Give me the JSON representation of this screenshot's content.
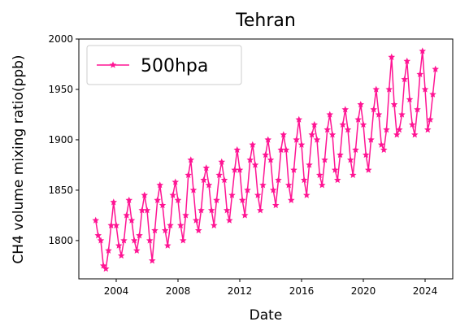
{
  "chart_data": {
    "type": "line",
    "title": "Tehran",
    "x_label": "Date",
    "y_label": "CH4 volume mixing ratio(ppb)",
    "xlim": [
      2001.58,
      2025.79
    ],
    "ylim": [
      1762,
      2000
    ],
    "xticks": [
      2004,
      2008,
      2012,
      2016,
      2020,
      2024
    ],
    "yticks": [
      1800,
      1850,
      1900,
      1950,
      2000
    ],
    "legend": "upper left",
    "grid": false,
    "x": [
      2002.67,
      2002.83,
      2003.0,
      2003.17,
      2003.33,
      2003.5,
      2003.67,
      2003.83,
      2004.0,
      2004.17,
      2004.33,
      2004.5,
      2004.67,
      2004.83,
      2005.0,
      2005.17,
      2005.33,
      2005.5,
      2005.67,
      2005.83,
      2006.0,
      2006.17,
      2006.33,
      2006.5,
      2006.67,
      2006.83,
      2007.0,
      2007.17,
      2007.33,
      2007.5,
      2007.67,
      2007.83,
      2008.0,
      2008.17,
      2008.33,
      2008.5,
      2008.67,
      2008.83,
      2009.0,
      2009.17,
      2009.33,
      2009.5,
      2009.67,
      2009.83,
      2010.0,
      2010.17,
      2010.33,
      2010.5,
      2010.67,
      2010.83,
      2011.0,
      2011.17,
      2011.33,
      2011.5,
      2011.67,
      2011.83,
      2012.0,
      2012.17,
      2012.33,
      2012.5,
      2012.67,
      2012.83,
      2013.0,
      2013.17,
      2013.33,
      2013.5,
      2013.67,
      2013.83,
      2014.0,
      2014.17,
      2014.33,
      2014.5,
      2014.67,
      2014.83,
      2015.0,
      2015.17,
      2015.33,
      2015.5,
      2015.67,
      2015.83,
      2016.0,
      2016.17,
      2016.33,
      2016.5,
      2016.67,
      2016.83,
      2017.0,
      2017.17,
      2017.33,
      2017.5,
      2017.67,
      2017.83,
      2018.0,
      2018.17,
      2018.33,
      2018.5,
      2018.67,
      2018.83,
      2019.0,
      2019.17,
      2019.33,
      2019.5,
      2019.67,
      2019.83,
      2020.0,
      2020.17,
      2020.33,
      2020.5,
      2020.67,
      2020.83,
      2021.0,
      2021.17,
      2021.33,
      2021.5,
      2021.67,
      2021.83,
      2022.0,
      2022.17,
      2022.33,
      2022.5,
      2022.67,
      2022.83,
      2023.0,
      2023.17,
      2023.33,
      2023.5,
      2023.67,
      2023.83,
      2024.0,
      2024.17,
      2024.33,
      2024.5,
      2024.67
    ],
    "series": [
      {
        "name": "500hpa",
        "color": "#ff1493",
        "values": [
          1820,
          1805,
          1800,
          1775,
          1772,
          1790,
          1815,
          1838,
          1815,
          1795,
          1785,
          1800,
          1825,
          1840,
          1820,
          1800,
          1790,
          1805,
          1830,
          1845,
          1830,
          1800,
          1780,
          1810,
          1840,
          1855,
          1835,
          1810,
          1795,
          1815,
          1845,
          1858,
          1840,
          1815,
          1800,
          1825,
          1865,
          1880,
          1850,
          1820,
          1810,
          1830,
          1860,
          1872,
          1855,
          1830,
          1815,
          1840,
          1865,
          1878,
          1860,
          1830,
          1820,
          1845,
          1870,
          1890,
          1870,
          1840,
          1825,
          1850,
          1880,
          1895,
          1875,
          1845,
          1830,
          1855,
          1885,
          1900,
          1880,
          1850,
          1835,
          1860,
          1890,
          1905,
          1890,
          1855,
          1840,
          1870,
          1900,
          1920,
          1895,
          1860,
          1845,
          1875,
          1905,
          1915,
          1900,
          1865,
          1855,
          1880,
          1910,
          1925,
          1905,
          1870,
          1860,
          1885,
          1915,
          1930,
          1910,
          1880,
          1865,
          1890,
          1920,
          1935,
          1915,
          1885,
          1870,
          1900,
          1930,
          1950,
          1925,
          1895,
          1890,
          1910,
          1950,
          1982,
          1935,
          1905,
          1910,
          1925,
          1960,
          1978,
          1940,
          1915,
          1905,
          1930,
          1965,
          1988,
          1950,
          1910,
          1920,
          1945,
          1970
        ]
      }
    ]
  }
}
